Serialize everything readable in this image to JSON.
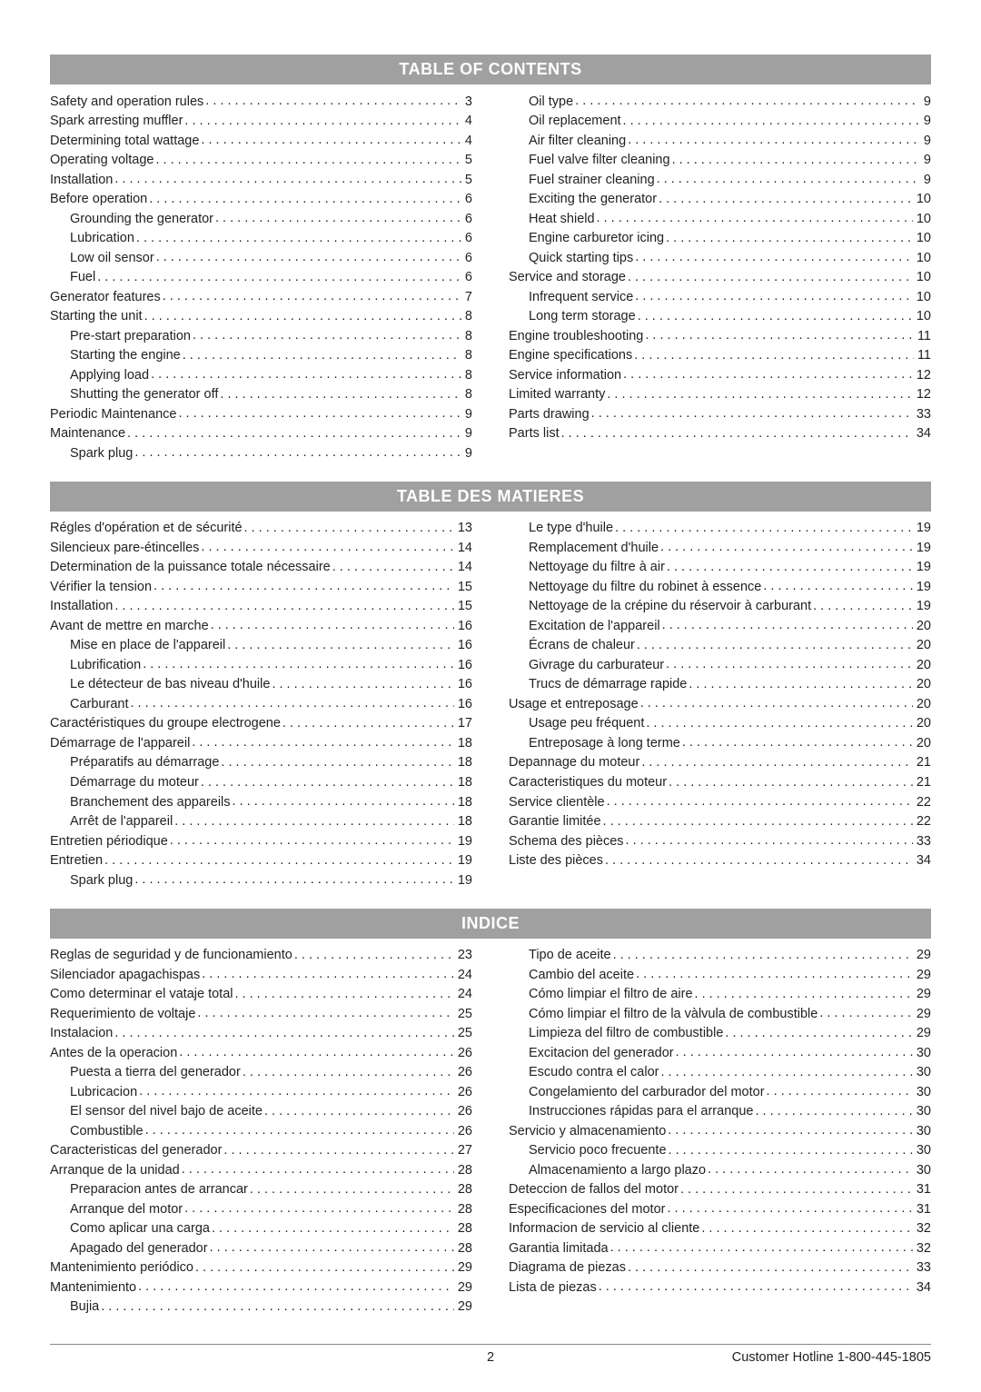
{
  "sections": [
    {
      "title": "TABLE OF CONTENTS",
      "left": [
        {
          "label": "Safety and operation rules",
          "page": "3",
          "indent": false
        },
        {
          "label": "Spark arresting muffler",
          "page": "4",
          "indent": false
        },
        {
          "label": "Determining total wattage",
          "page": "4",
          "indent": false
        },
        {
          "label": "Operating voltage",
          "page": "5",
          "indent": false
        },
        {
          "label": "Installation",
          "page": "5",
          "indent": false
        },
        {
          "label": "Before operation",
          "page": "6",
          "indent": false
        },
        {
          "label": "Grounding the generator",
          "page": "6",
          "indent": true
        },
        {
          "label": "Lubrication",
          "page": "6",
          "indent": true
        },
        {
          "label": "Low oil sensor",
          "page": "6",
          "indent": true
        },
        {
          "label": "Fuel",
          "page": "6",
          "indent": true
        },
        {
          "label": "Generator features",
          "page": "7",
          "indent": false
        },
        {
          "label": "Starting the unit",
          "page": "8",
          "indent": false
        },
        {
          "label": "Pre-start preparation",
          "page": "8",
          "indent": true
        },
        {
          "label": "Starting the engine",
          "page": "8",
          "indent": true
        },
        {
          "label": "Applying load",
          "page": "8",
          "indent": true
        },
        {
          "label": "Shutting the generator off",
          "page": "8",
          "indent": true
        },
        {
          "label": "Periodic Maintenance",
          "page": "9",
          "indent": false
        },
        {
          "label": "Maintenance",
          "page": "9",
          "indent": false
        },
        {
          "label": "Spark plug",
          "page": "9",
          "indent": true
        }
      ],
      "right": [
        {
          "label": "Oil type",
          "page": "9",
          "indent": true
        },
        {
          "label": "Oil replacement",
          "page": "9",
          "indent": true
        },
        {
          "label": "Air filter cleaning",
          "page": "9",
          "indent": true
        },
        {
          "label": "Fuel valve filter cleaning",
          "page": "9",
          "indent": true
        },
        {
          "label": "Fuel strainer cleaning",
          "page": "9",
          "indent": true
        },
        {
          "label": "Exciting the generator",
          "page": "10",
          "indent": true
        },
        {
          "label": "Heat shield",
          "page": "10",
          "indent": true
        },
        {
          "label": "Engine carburetor icing",
          "page": "10",
          "indent": true
        },
        {
          "label": "Quick starting tips",
          "page": "10",
          "indent": true
        },
        {
          "label": "Service and storage",
          "page": "10",
          "indent": false
        },
        {
          "label": "Infrequent service",
          "page": "10",
          "indent": true
        },
        {
          "label": "Long term storage",
          "page": "10",
          "indent": true
        },
        {
          "label": "Engine troubleshooting",
          "page": "11",
          "indent": false
        },
        {
          "label": "Engine specifications",
          "page": "11",
          "indent": false
        },
        {
          "label": "Service information",
          "page": "12",
          "indent": false
        },
        {
          "label": "Limited warranty",
          "page": "12",
          "indent": false
        },
        {
          "label": "Parts drawing",
          "page": "33",
          "indent": false
        },
        {
          "label": "Parts list",
          "page": "34",
          "indent": false
        }
      ]
    },
    {
      "title": "TABLE DES MATIERES",
      "left": [
        {
          "label": "Régles d'opération et de sécurité",
          "page": "13",
          "indent": false
        },
        {
          "label": "Silencieux pare-étincelles",
          "page": "14",
          "indent": false
        },
        {
          "label": "Determination de la puissance totale nécessaire",
          "page": "14",
          "indent": false
        },
        {
          "label": "Vérifier la tension",
          "page": "15",
          "indent": false
        },
        {
          "label": "Installation",
          "page": "15",
          "indent": false
        },
        {
          "label": "Avant de mettre en marche",
          "page": "16",
          "indent": false
        },
        {
          "label": "Mise en place de l'appareil",
          "page": "16",
          "indent": true
        },
        {
          "label": "Lubrification",
          "page": "16",
          "indent": true
        },
        {
          "label": "Le détecteur de bas niveau d'huile",
          "page": "16",
          "indent": true
        },
        {
          "label": "Carburant",
          "page": "16",
          "indent": true
        },
        {
          "label": "Caractéristiques du groupe electrogene",
          "page": "17",
          "indent": false
        },
        {
          "label": "Démarrage de l'appareil",
          "page": "18",
          "indent": false
        },
        {
          "label": "Préparatifs au démarrage",
          "page": "18",
          "indent": true
        },
        {
          "label": "Démarrage du moteur",
          "page": "18",
          "indent": true
        },
        {
          "label": "Branchement des appareils",
          "page": "18",
          "indent": true
        },
        {
          "label": "Arrêt de l'appareil",
          "page": "18",
          "indent": true
        },
        {
          "label": "Entretien périodique",
          "page": "19",
          "indent": false
        },
        {
          "label": "Entretien",
          "page": "19",
          "indent": false
        },
        {
          "label": "Spark plug",
          "page": "19",
          "indent": true
        }
      ],
      "right": [
        {
          "label": "Le type d'huile",
          "page": "19",
          "indent": true
        },
        {
          "label": "Remplacement d'huile",
          "page": "19",
          "indent": true
        },
        {
          "label": "Nettoyage du filtre à air",
          "page": "19",
          "indent": true
        },
        {
          "label": "Nettoyage du filtre du robinet à essence",
          "page": "19",
          "indent": true
        },
        {
          "label": "Nettoyage de la crépine du réservoir à carburant",
          "page": "19",
          "indent": true
        },
        {
          "label": "Excitation de l'appareil",
          "page": "20",
          "indent": true
        },
        {
          "label": "Écrans de chaleur",
          "page": "20",
          "indent": true
        },
        {
          "label": "Givrage du carburateur",
          "page": "20",
          "indent": true
        },
        {
          "label": "Trucs de démarrage rapide",
          "page": "20",
          "indent": true
        },
        {
          "label": "Usage et entreposage",
          "page": "20",
          "indent": false
        },
        {
          "label": "Usage peu fréquent",
          "page": "20",
          "indent": true
        },
        {
          "label": "Entreposage à long terme",
          "page": "20",
          "indent": true
        },
        {
          "label": "Depannage du moteur",
          "page": "21",
          "indent": false
        },
        {
          "label": "Caracteristiques du moteur",
          "page": "21",
          "indent": false
        },
        {
          "label": "Service clientèle",
          "page": "22",
          "indent": false
        },
        {
          "label": "Garantie limitée",
          "page": "22",
          "indent": false
        },
        {
          "label": "Schema des pièces",
          "page": "33",
          "indent": false
        },
        {
          "label": "Liste des pièces",
          "page": "34",
          "indent": false
        }
      ]
    },
    {
      "title": "INDICE",
      "left": [
        {
          "label": "Reglas de seguridad y de funcionamiento",
          "page": "23",
          "indent": false
        },
        {
          "label": "Silenciador apagachispas",
          "page": "24",
          "indent": false
        },
        {
          "label": "Como determinar el vataje total",
          "page": "24",
          "indent": false
        },
        {
          "label": "Requerimiento de voltaje",
          "page": "25",
          "indent": false
        },
        {
          "label": "Instalacion",
          "page": "25",
          "indent": false
        },
        {
          "label": "Antes de la operacion",
          "page": "26",
          "indent": false
        },
        {
          "label": "Puesta a tierra del generador",
          "page": "26",
          "indent": true
        },
        {
          "label": "Lubricacion",
          "page": "26",
          "indent": true
        },
        {
          "label": "El sensor del nivel bajo de aceite",
          "page": "26",
          "indent": true
        },
        {
          "label": "Combustible",
          "page": "26",
          "indent": true
        },
        {
          "label": "Caracteristicas del generador",
          "page": "27",
          "indent": false
        },
        {
          "label": "Arranque de la unidad",
          "page": "28",
          "indent": false
        },
        {
          "label": "Preparacion antes de arrancar",
          "page": "28",
          "indent": true
        },
        {
          "label": "Arranque del motor",
          "page": "28",
          "indent": true
        },
        {
          "label": "Como aplicar una carga",
          "page": "28",
          "indent": true
        },
        {
          "label": "Apagado del generador",
          "page": "28",
          "indent": true
        },
        {
          "label": "Mantenimiento periódico",
          "page": "29",
          "indent": false
        },
        {
          "label": "Mantenimiento",
          "page": "29",
          "indent": false
        },
        {
          "label": "Bujia",
          "page": "29",
          "indent": true
        }
      ],
      "right": [
        {
          "label": "Tipo de aceite",
          "page": "29",
          "indent": true
        },
        {
          "label": "Cambio del aceite",
          "page": "29",
          "indent": true
        },
        {
          "label": "Cómo limpiar el filtro de aire",
          "page": "29",
          "indent": true
        },
        {
          "label": "Cómo limpiar el filtro de la vàlvula de combustible",
          "page": "29",
          "indent": true
        },
        {
          "label": "Limpieza del filtro de combustible",
          "page": "29",
          "indent": true
        },
        {
          "label": "Excitacion del generador",
          "page": "30",
          "indent": true
        },
        {
          "label": "Escudo contra el calor",
          "page": "30",
          "indent": true
        },
        {
          "label": "Congelamiento del carburador del motor",
          "page": "30",
          "indent": true
        },
        {
          "label": "Instrucciones rápidas para el arranque",
          "page": "30",
          "indent": true
        },
        {
          "label": "Servicio y almacenamiento",
          "page": "30",
          "indent": false
        },
        {
          "label": "Servicio poco frecuente",
          "page": "30",
          "indent": true
        },
        {
          "label": "Almacenamiento a largo plazo",
          "page": "30",
          "indent": true
        },
        {
          "label": "Deteccion de fallos del motor",
          "page": "31",
          "indent": false
        },
        {
          "label": "Especificaciones del motor",
          "page": "31",
          "indent": false
        },
        {
          "label": "Informacion de servicio al cliente",
          "page": "32",
          "indent": false
        },
        {
          "label": "Garantia limitada",
          "page": "32",
          "indent": false
        },
        {
          "label": "Diagrama de piezas",
          "page": "33",
          "indent": false
        },
        {
          "label": "Lista de piezas",
          "page": "34",
          "indent": false
        }
      ]
    }
  ],
  "footer": {
    "page_number": "2",
    "hotline": "Customer Hotline 1-800-445-1805"
  }
}
